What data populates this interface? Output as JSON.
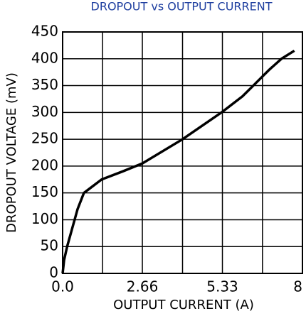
{
  "chart_data": {
    "type": "line",
    "title": "DROPOUT vs OUTPUT CURRENT",
    "x_label": "OUTPUT CURRENT (A)",
    "y_label": "DROPOUT VOLTAGE (mV)",
    "x": [
      0,
      0.05,
      0.15,
      0.3,
      0.5,
      0.71,
      1.3,
      2.0,
      2.66,
      4.0,
      5.3,
      6.0,
      6.36,
      6.9,
      7.3,
      7.73
    ],
    "series": [
      {
        "name": "Dropout",
        "color": "#000000",
        "values": [
          0,
          25,
          50,
          80,
          120,
          150,
          175,
          190,
          205,
          250,
          300,
          330,
          350,
          380,
          400,
          415
        ]
      }
    ],
    "xlim": [
      0,
      8
    ],
    "xticks": [
      {
        "value": 0,
        "label": "0.0"
      },
      2.66,
      5.33,
      8
    ],
    "x_minor_grid": [
      1.333,
      4,
      6.667
    ],
    "ylim": [
      0,
      450
    ],
    "yticks": [
      0,
      50,
      100,
      150,
      200,
      250,
      300,
      350,
      400,
      450
    ],
    "grid": true
  }
}
